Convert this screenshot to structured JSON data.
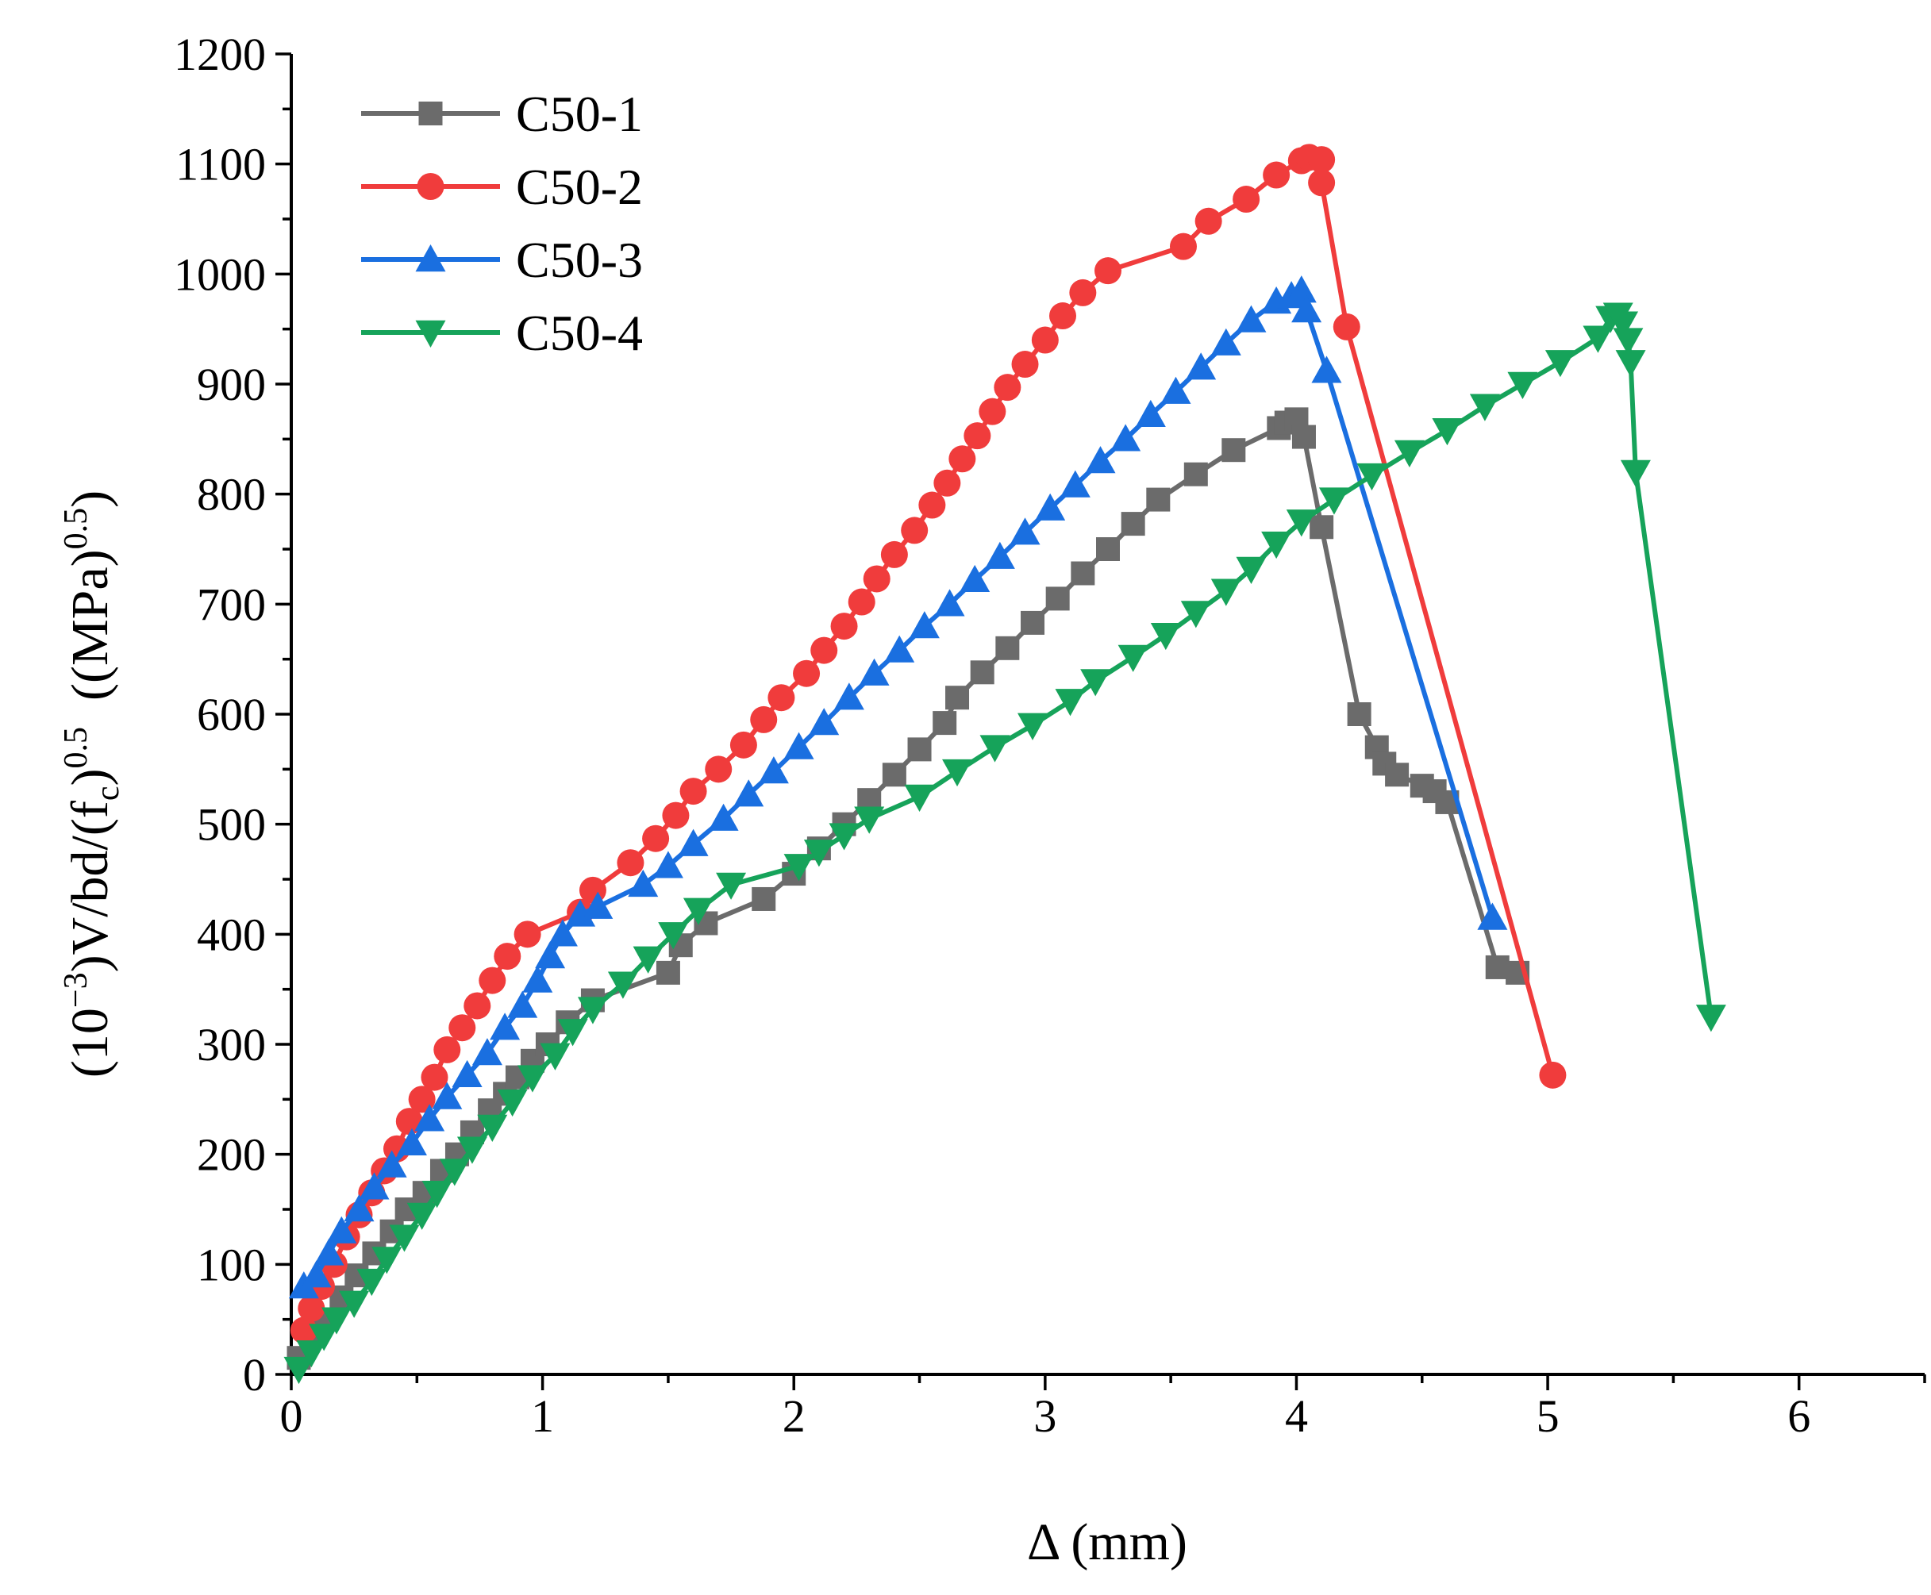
{
  "chart_data": {
    "type": "line",
    "xlabel": "Δ (mm)",
    "ylabel": {
      "p1": "(10",
      "sup1": "−3",
      "p2": ")V/bd/(f",
      "sub1": "c",
      "p3": ")",
      "sup2": "0.5",
      "p4": "  ((MPa)",
      "sup3": "0.5",
      "p5": ")"
    },
    "xlim": [
      0,
      6.5
    ],
    "ylim": [
      0,
      1200
    ],
    "xticks": [
      0,
      1,
      2,
      3,
      4,
      5,
      6
    ],
    "yticks": [
      0,
      100,
      200,
      300,
      400,
      500,
      600,
      700,
      800,
      900,
      1000,
      1100,
      1200
    ],
    "x_minor_step": 0.5,
    "y_minor_step": 50,
    "grid": false,
    "legend_position": "top-left",
    "series": [
      {
        "name": "C50-1",
        "color": "#6b6b6b",
        "marker": "square",
        "points": [
          [
            0.03,
            15
          ],
          [
            0.08,
            35
          ],
          [
            0.13,
            50
          ],
          [
            0.2,
            70
          ],
          [
            0.26,
            90
          ],
          [
            0.33,
            110
          ],
          [
            0.4,
            130
          ],
          [
            0.46,
            150
          ],
          [
            0.53,
            165
          ],
          [
            0.6,
            185
          ],
          [
            0.66,
            200
          ],
          [
            0.72,
            220
          ],
          [
            0.79,
            240
          ],
          [
            0.85,
            255
          ],
          [
            0.9,
            270
          ],
          [
            0.96,
            285
          ],
          [
            1.02,
            300
          ],
          [
            1.1,
            320
          ],
          [
            1.2,
            340
          ],
          [
            1.5,
            365
          ],
          [
            1.55,
            390
          ],
          [
            1.65,
            410
          ],
          [
            1.88,
            432
          ],
          [
            2.0,
            455
          ],
          [
            2.1,
            478
          ],
          [
            2.2,
            500
          ],
          [
            2.3,
            522
          ],
          [
            2.4,
            545
          ],
          [
            2.5,
            568
          ],
          [
            2.6,
            592
          ],
          [
            2.65,
            615
          ],
          [
            2.75,
            638
          ],
          [
            2.85,
            660
          ],
          [
            2.95,
            683
          ],
          [
            3.05,
            705
          ],
          [
            3.15,
            728
          ],
          [
            3.25,
            750
          ],
          [
            3.35,
            773
          ],
          [
            3.45,
            795
          ],
          [
            3.6,
            818
          ],
          [
            3.75,
            840
          ],
          [
            3.93,
            860
          ],
          [
            3.96,
            865
          ],
          [
            4.0,
            868
          ],
          [
            4.03,
            852
          ],
          [
            4.1,
            770
          ],
          [
            4.25,
            600
          ],
          [
            4.32,
            570
          ],
          [
            4.35,
            555
          ],
          [
            4.4,
            545
          ],
          [
            4.5,
            535
          ],
          [
            4.55,
            530
          ],
          [
            4.6,
            520
          ],
          [
            4.8,
            370
          ],
          [
            4.88,
            365
          ]
        ]
      },
      {
        "name": "C50-2",
        "color": "#f03c3c",
        "marker": "circle",
        "points": [
          [
            0.05,
            40
          ],
          [
            0.08,
            60
          ],
          [
            0.12,
            80
          ],
          [
            0.17,
            100
          ],
          [
            0.22,
            125
          ],
          [
            0.27,
            145
          ],
          [
            0.32,
            165
          ],
          [
            0.37,
            185
          ],
          [
            0.42,
            205
          ],
          [
            0.47,
            230
          ],
          [
            0.52,
            250
          ],
          [
            0.57,
            270
          ],
          [
            0.62,
            295
          ],
          [
            0.68,
            315
          ],
          [
            0.74,
            335
          ],
          [
            0.8,
            358
          ],
          [
            0.86,
            380
          ],
          [
            0.94,
            400
          ],
          [
            1.15,
            420
          ],
          [
            1.2,
            440
          ],
          [
            1.35,
            465
          ],
          [
            1.45,
            487
          ],
          [
            1.53,
            508
          ],
          [
            1.6,
            530
          ],
          [
            1.7,
            550
          ],
          [
            1.8,
            572
          ],
          [
            1.88,
            595
          ],
          [
            1.95,
            615
          ],
          [
            2.05,
            637
          ],
          [
            2.12,
            658
          ],
          [
            2.2,
            680
          ],
          [
            2.27,
            702
          ],
          [
            2.33,
            723
          ],
          [
            2.4,
            745
          ],
          [
            2.48,
            767
          ],
          [
            2.55,
            790
          ],
          [
            2.61,
            810
          ],
          [
            2.67,
            832
          ],
          [
            2.73,
            853
          ],
          [
            2.79,
            875
          ],
          [
            2.85,
            897
          ],
          [
            2.92,
            918
          ],
          [
            3.0,
            940
          ],
          [
            3.07,
            962
          ],
          [
            3.15,
            983
          ],
          [
            3.25,
            1003
          ],
          [
            3.55,
            1025
          ],
          [
            3.65,
            1048
          ],
          [
            3.8,
            1068
          ],
          [
            3.92,
            1090
          ],
          [
            4.02,
            1103
          ],
          [
            4.05,
            1106
          ],
          [
            4.1,
            1104
          ],
          [
            4.1,
            1083
          ],
          [
            4.2,
            952
          ],
          [
            5.02,
            272
          ]
        ]
      },
      {
        "name": "C50-3",
        "color": "#1a6fe0",
        "marker": "triangle-up",
        "points": [
          [
            0.05,
            80
          ],
          [
            0.1,
            90
          ],
          [
            0.15,
            110
          ],
          [
            0.2,
            130
          ],
          [
            0.27,
            150
          ],
          [
            0.33,
            170
          ],
          [
            0.4,
            190
          ],
          [
            0.48,
            210
          ],
          [
            0.55,
            232
          ],
          [
            0.62,
            252
          ],
          [
            0.7,
            272
          ],
          [
            0.78,
            292
          ],
          [
            0.85,
            315
          ],
          [
            0.92,
            335
          ],
          [
            0.98,
            358
          ],
          [
            1.03,
            380
          ],
          [
            1.08,
            400
          ],
          [
            1.15,
            418
          ],
          [
            1.22,
            425
          ],
          [
            1.4,
            445
          ],
          [
            1.5,
            462
          ],
          [
            1.6,
            482
          ],
          [
            1.72,
            505
          ],
          [
            1.82,
            527
          ],
          [
            1.92,
            548
          ],
          [
            2.02,
            570
          ],
          [
            2.12,
            592
          ],
          [
            2.22,
            615
          ],
          [
            2.32,
            637
          ],
          [
            2.42,
            658
          ],
          [
            2.52,
            680
          ],
          [
            2.62,
            700
          ],
          [
            2.72,
            722
          ],
          [
            2.82,
            743
          ],
          [
            2.92,
            765
          ],
          [
            3.02,
            787
          ],
          [
            3.12,
            808
          ],
          [
            3.22,
            830
          ],
          [
            3.32,
            850
          ],
          [
            3.42,
            872
          ],
          [
            3.52,
            893
          ],
          [
            3.62,
            915
          ],
          [
            3.72,
            937
          ],
          [
            3.82,
            958
          ],
          [
            3.92,
            975
          ],
          [
            3.98,
            980
          ],
          [
            4.02,
            985
          ],
          [
            4.04,
            967
          ],
          [
            4.12,
            912
          ],
          [
            4.78,
            415
          ]
        ]
      },
      {
        "name": "C50-4",
        "color": "#16a35a",
        "marker": "triangle-down",
        "points": [
          [
            0.03,
            5
          ],
          [
            0.08,
            20
          ],
          [
            0.13,
            35
          ],
          [
            0.18,
            50
          ],
          [
            0.25,
            65
          ],
          [
            0.32,
            85
          ],
          [
            0.38,
            105
          ],
          [
            0.45,
            125
          ],
          [
            0.52,
            145
          ],
          [
            0.58,
            165
          ],
          [
            0.65,
            185
          ],
          [
            0.72,
            205
          ],
          [
            0.8,
            225
          ],
          [
            0.88,
            248
          ],
          [
            0.96,
            270
          ],
          [
            1.05,
            290
          ],
          [
            1.12,
            312
          ],
          [
            1.2,
            332
          ],
          [
            1.32,
            355
          ],
          [
            1.42,
            378
          ],
          [
            1.52,
            400
          ],
          [
            1.62,
            422
          ],
          [
            1.75,
            445
          ],
          [
            2.02,
            462
          ],
          [
            2.1,
            475
          ],
          [
            2.2,
            490
          ],
          [
            2.3,
            505
          ],
          [
            2.5,
            525
          ],
          [
            2.65,
            548
          ],
          [
            2.8,
            570
          ],
          [
            2.95,
            590
          ],
          [
            3.1,
            612
          ],
          [
            3.2,
            630
          ],
          [
            3.35,
            652
          ],
          [
            3.48,
            672
          ],
          [
            3.6,
            692
          ],
          [
            3.72,
            712
          ],
          [
            3.82,
            732
          ],
          [
            3.92,
            755
          ],
          [
            4.02,
            775
          ],
          [
            4.15,
            795
          ],
          [
            4.3,
            817
          ],
          [
            4.45,
            838
          ],
          [
            4.6,
            858
          ],
          [
            4.75,
            880
          ],
          [
            4.9,
            900
          ],
          [
            5.05,
            920
          ],
          [
            5.2,
            942
          ],
          [
            5.25,
            960
          ],
          [
            5.28,
            963
          ],
          [
            5.3,
            955
          ],
          [
            5.32,
            940
          ],
          [
            5.33,
            920
          ],
          [
            5.35,
            820
          ],
          [
            5.65,
            325
          ]
        ]
      }
    ]
  }
}
